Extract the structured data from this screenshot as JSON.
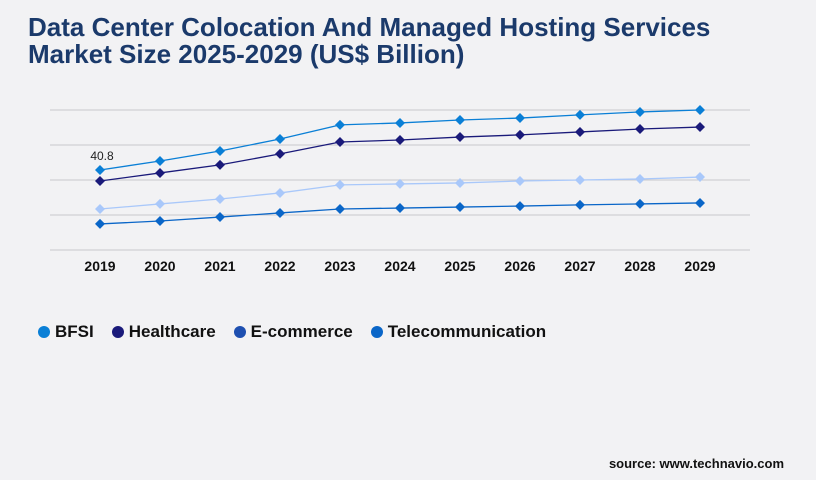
{
  "chart_data": {
    "type": "line",
    "title": "Data Center Colocation And Managed Hosting Services Market Size 2025-2029 (US$ Billion)",
    "xlabel": "",
    "ylabel": "",
    "categories": [
      "2019",
      "2020",
      "2021",
      "2022",
      "2023",
      "2024",
      "2025",
      "2026",
      "2027",
      "2028",
      "2029"
    ],
    "ylim": [
      0,
      71.4
    ],
    "grid": true,
    "legend_position": "bottom-left",
    "series": [
      {
        "name": "BFSI",
        "color": "#0a7fd6",
        "marker_color": "#0a7fd6",
        "values": [
          40.8,
          45.4,
          50.5,
          56.6,
          63.8,
          64.8,
          66.3,
          67.3,
          68.9,
          70.4,
          71.4
        ]
      },
      {
        "name": "Healthcare",
        "color": "#1a1a7a",
        "marker_color": "#1a1a7a",
        "values": [
          35.2,
          39.3,
          43.4,
          49.0,
          55.1,
          56.1,
          57.6,
          58.7,
          60.2,
          61.7,
          62.7
        ]
      },
      {
        "name": "E-commerce",
        "color": "#a9c8fa",
        "marker_color": "#1e4fb0",
        "values": [
          20.9,
          23.5,
          26.0,
          29.1,
          33.2,
          33.7,
          34.2,
          35.2,
          35.7,
          36.2,
          37.2
        ]
      },
      {
        "name": "Telecommunication",
        "color": "#0a66c8",
        "marker_color": "#0a66c8",
        "values": [
          13.3,
          14.8,
          16.8,
          18.9,
          20.9,
          21.4,
          21.9,
          22.4,
          23.0,
          23.5,
          24.0
        ]
      }
    ],
    "annotations": [
      {
        "series": "BFSI",
        "category": "2019",
        "text": "40.8"
      }
    ]
  },
  "source": "source: www.technavio.com"
}
